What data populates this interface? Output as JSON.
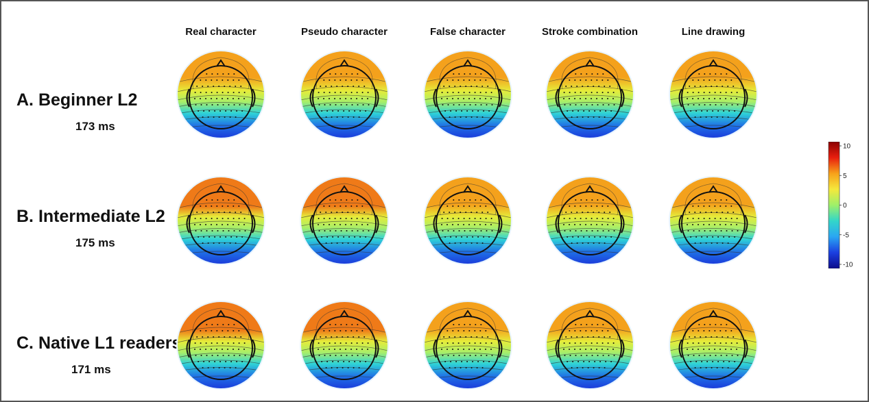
{
  "columns": [
    "Real character",
    "Pseudo character",
    "False character",
    "Stroke combination",
    "Line drawing"
  ],
  "rows": [
    {
      "label": "A. Beginner L2",
      "latency": "173 ms"
    },
    {
      "label": "B. Intermediate L2",
      "latency": "175 ms"
    },
    {
      "label": "C. Native L1 readers",
      "latency": "171 ms"
    }
  ],
  "colorbar": {
    "ticks": [
      "10",
      "5",
      "0",
      "-5",
      "-10"
    ],
    "colors": [
      "#8b0000",
      "#e81e0e",
      "#f7a11a",
      "#f5e83c",
      "#9ef06a",
      "#33d6c9",
      "#2aa6f3",
      "#1b3fe0",
      "#0c0c8c"
    ]
  },
  "maps": {
    "frontal_intensity": [
      [
        0.5,
        0.45,
        0.45,
        0.4,
        0.4
      ],
      [
        0.85,
        0.8,
        0.65,
        0.65,
        0.6
      ],
      [
        0.75,
        0.75,
        0.6,
        0.65,
        0.6
      ]
    ],
    "colors": {
      "front": "#f4a11c",
      "front_strong": "#ef7a18",
      "mid": "#e6ec3a",
      "green": "#a7ee6a",
      "cyan": "#2fd3d6",
      "blue": "#1f6fe6",
      "deep_blue": "#1a2fd8"
    }
  }
}
